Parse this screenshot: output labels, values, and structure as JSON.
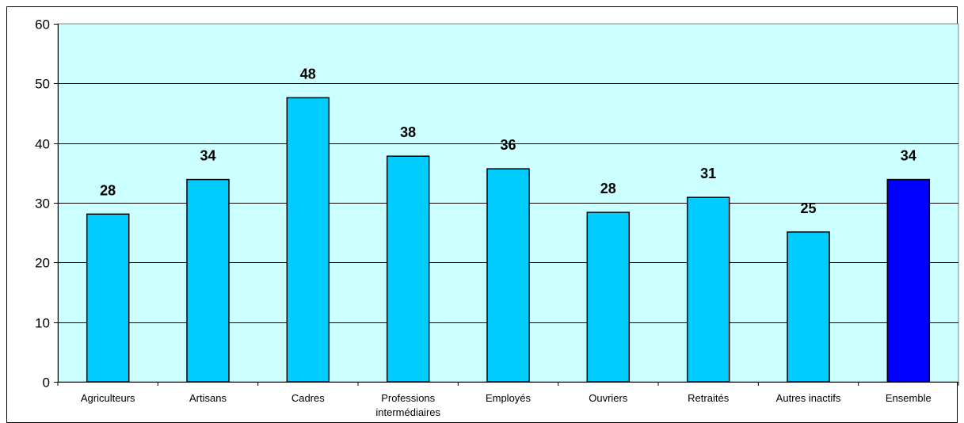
{
  "chart_data": {
    "type": "bar",
    "categories": [
      [
        "Agriculteurs"
      ],
      [
        "Artisans"
      ],
      [
        "Cadres"
      ],
      [
        "Professions",
        "intermédiaires"
      ],
      [
        "Employés"
      ],
      [
        "Ouvriers"
      ],
      [
        "Retraités"
      ],
      [
        "Autres inactifs"
      ],
      [
        "Ensemble"
      ]
    ],
    "values": [
      28.1,
      33.9,
      47.6,
      37.8,
      35.7,
      28.4,
      30.9,
      25.1,
      33.9
    ],
    "data_labels": [
      "28",
      "34",
      "48",
      "38",
      "36",
      "28",
      "31",
      "25",
      "34"
    ],
    "ylim": [
      0,
      60
    ],
    "yticks": [
      0,
      10,
      20,
      30,
      40,
      50,
      60
    ],
    "grid": true,
    "legend": "none",
    "colors": {
      "plot_background": "#CCFFFF",
      "bar": "#00CCFF",
      "highlight_bar": "#0000FF",
      "highlight_index": 8,
      "gridline": "#000000"
    }
  }
}
